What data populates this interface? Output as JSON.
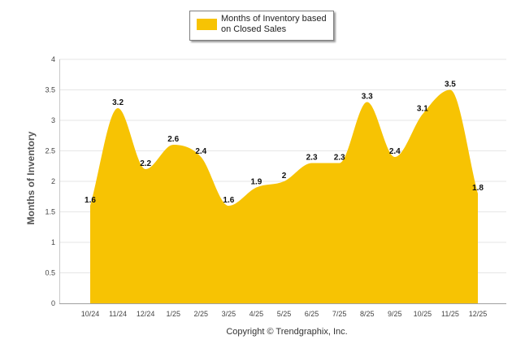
{
  "chart_data": {
    "type": "area",
    "title": "",
    "xlabel": "",
    "ylabel": "Months of Inventory",
    "ylim": [
      0,
      4
    ],
    "yticks": [
      "0",
      "0.5",
      "1",
      "1.5",
      "2",
      "2.5",
      "3",
      "3.5",
      "4"
    ],
    "categories": [
      "10/24",
      "11/24",
      "12/24",
      "1/25",
      "2/25",
      "3/25",
      "4/25",
      "5/25",
      "6/25",
      "7/25",
      "8/25",
      "9/25",
      "10/25",
      "11/25",
      "12/25"
    ],
    "series": [
      {
        "name": "Months of Inventory based on Closed Sales",
        "values": [
          1.6,
          3.2,
          2.2,
          2.6,
          2.4,
          1.6,
          1.9,
          2,
          2.3,
          2.3,
          3.3,
          2.4,
          3.1,
          3.5,
          1.8
        ],
        "labels": [
          "1.6",
          "3.2",
          "2.2",
          "2.6",
          "2.4",
          "1.6",
          "1.9",
          "2",
          "2.3",
          "2.3",
          "3.3",
          "2.4",
          "3.1",
          "3.5",
          "1.8"
        ]
      }
    ],
    "legend": {
      "line1": "Months of Inventory based",
      "line2": "on Closed Sales",
      "position": "top-center"
    },
    "grid": true,
    "fill_color": "#F7C303",
    "grid_color": "#E6E6E6",
    "axis_color": "#A0A0A0"
  },
  "footer": {
    "copyright": "Copyright © Trendgraphix, Inc."
  }
}
